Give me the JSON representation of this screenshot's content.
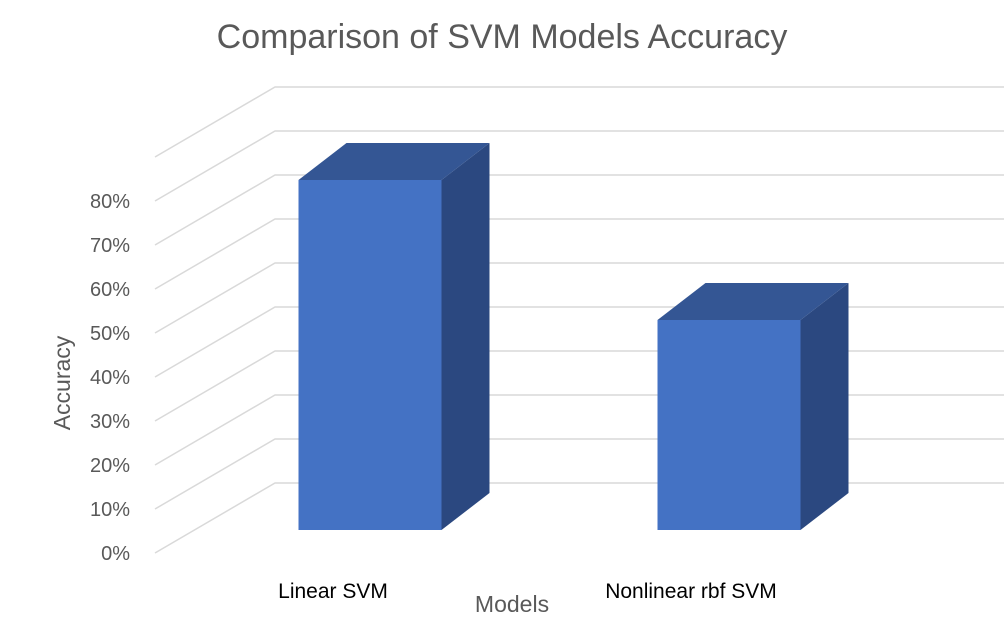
{
  "chart_data": {
    "type": "bar",
    "title": "Comparison of SVM Models Accuracy",
    "xlabel": "Models",
    "ylabel": "Accuracy",
    "categories": [
      "Linear SVM",
      "Nonlinear rbf SVM"
    ],
    "values": [
      0.8,
      0.48
    ],
    "ylim": [
      0,
      0.8
    ],
    "y_ticks": [
      "0%",
      "10%",
      "20%",
      "30%",
      "40%",
      "50%",
      "60%",
      "70%",
      "80%"
    ],
    "grid": true,
    "legend": "none",
    "style": "3d-column",
    "colors": {
      "front": "#4472C4",
      "top": "#345694",
      "side": "#2B4880",
      "grid": "#D9D9D9"
    }
  }
}
